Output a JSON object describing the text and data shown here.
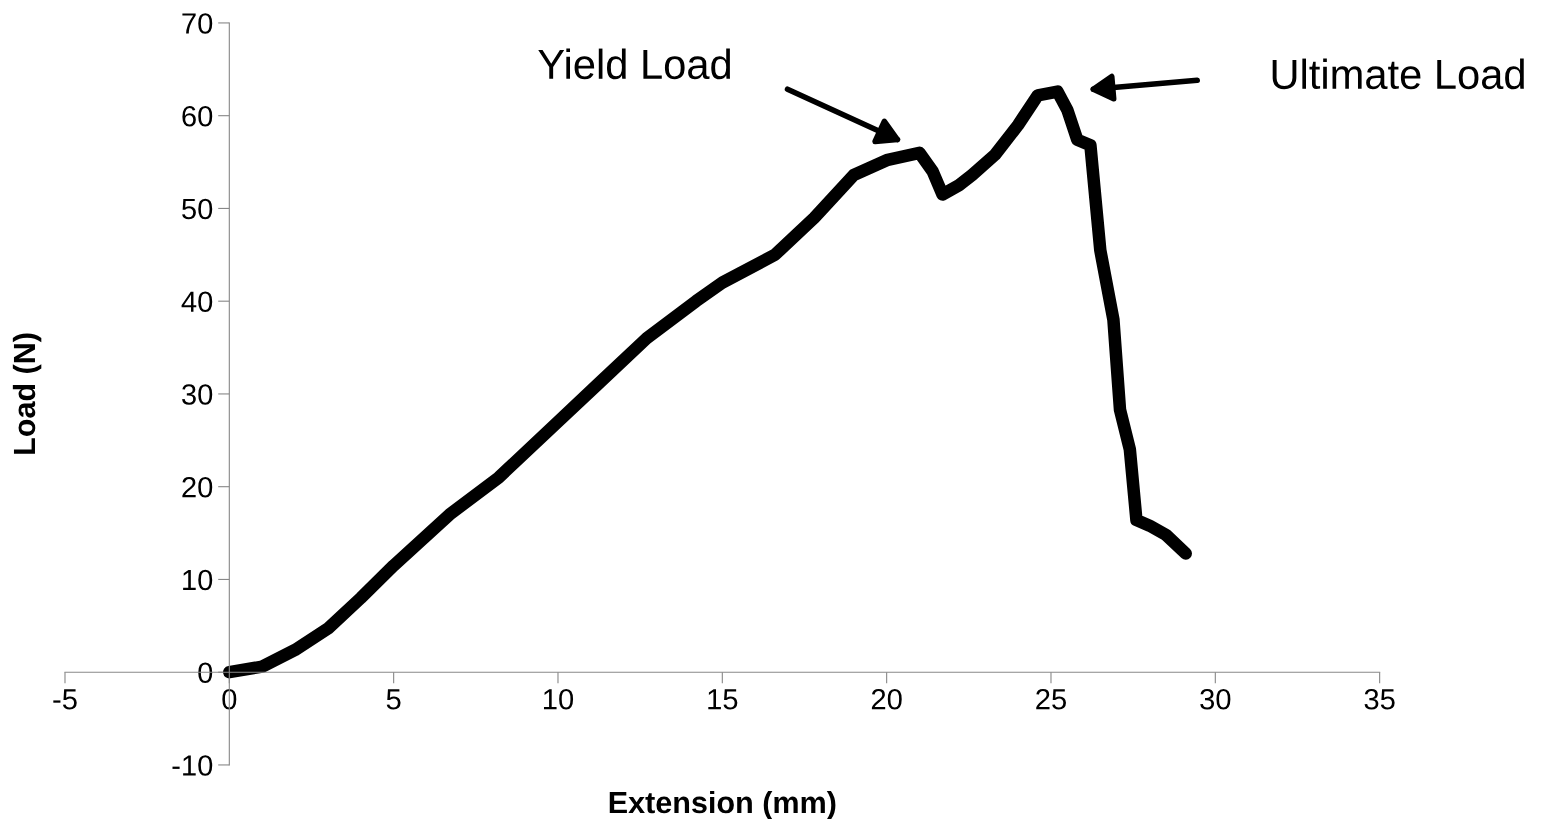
{
  "chart_data": {
    "type": "line",
    "xlabel": "Extension (mm)",
    "ylabel": "Load (N)",
    "xlim": [
      -5,
      35
    ],
    "ylim": [
      -10,
      70
    ],
    "xticks": [
      -5,
      0,
      5,
      10,
      15,
      20,
      25,
      30,
      35
    ],
    "yticks": [
      -10,
      0,
      10,
      20,
      30,
      40,
      50,
      60,
      70
    ],
    "grid": false,
    "legend": false,
    "line_style": "solid",
    "series": [
      {
        "color": "#000000",
        "x": [
          0,
          1,
          2,
          3,
          4,
          5,
          6.7,
          8.2,
          10,
          11.2,
          12.7,
          14.2,
          15,
          16.6,
          17.8,
          19,
          20,
          21,
          21.4,
          21.7,
          22.2,
          22.6,
          23.3,
          24,
          24.6,
          25.2,
          25.5,
          25.8,
          26.2,
          26.5,
          26.9,
          27.1,
          27.4,
          27.6,
          28,
          28.5,
          29.1
        ],
        "values": [
          0,
          0.6,
          2.4,
          4.7,
          8,
          11.5,
          17,
          21,
          27,
          31,
          36,
          40,
          42,
          45,
          49,
          53.6,
          55.2,
          56,
          54,
          51.5,
          52.5,
          53.6,
          55.8,
          59,
          62.2,
          62.6,
          60.6,
          57.4,
          56.8,
          45.5,
          38,
          28.3,
          24,
          16.4,
          15.8,
          14.8,
          12.8
        ]
      }
    ],
    "annotations": [
      "Yield Load",
      "Ultimate Load"
    ]
  }
}
